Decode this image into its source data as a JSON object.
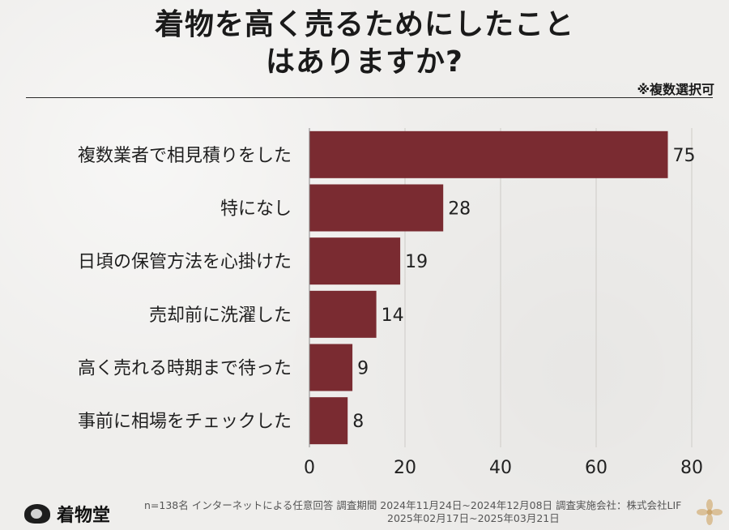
{
  "title": {
    "line1": "着物を高く売るためにしたこと",
    "line2": "はありますか?"
  },
  "note": "※複数選択可",
  "chart_data": {
    "type": "bar",
    "orientation": "horizontal",
    "categories": [
      "複数業者で相見積りをした",
      "特になし",
      "日頃の保管方法を心掛けた",
      "売却前に洗濯した",
      "高く売れる時期まで待った",
      "事前に相場をチェックした"
    ],
    "values": [
      75,
      28,
      19,
      14,
      9,
      8
    ],
    "xlim": [
      0,
      80
    ],
    "xticks": [
      0,
      20,
      40,
      60,
      80
    ],
    "grid": true,
    "bar_color": "#7a2b31",
    "title": "着物を高く売るためにしたことはありますか?"
  },
  "footer": {
    "logo_text": "着物堂",
    "note_line1": "n=138名 インターネットによる任意回答 調査期間 2024年11月24日~2024年12月08日  調査実施会社：株式会社LIF",
    "note_line2": "2025年02月17日~2025年03月21日"
  },
  "colors": {
    "bar": "#7a2b31",
    "grid": "#d8d6d2",
    "background": "#efeeec"
  }
}
